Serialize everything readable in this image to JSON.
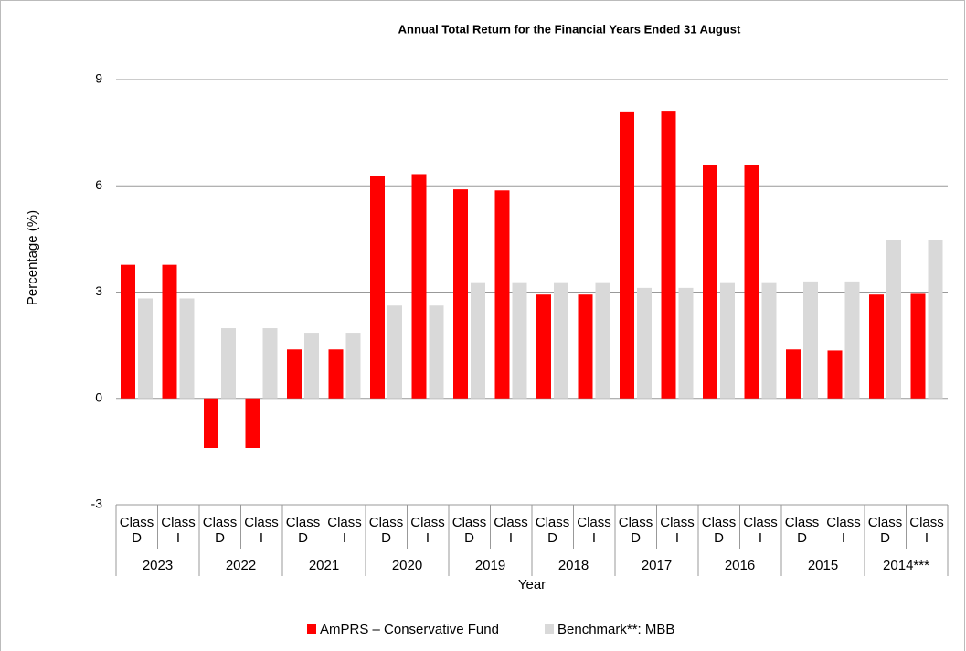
{
  "chart_data": {
    "type": "bar",
    "title": "Annual Total Return for the Financial Years Ended 31 August",
    "x_label": "Year",
    "y_label": "Percentage (%)",
    "categories": [
      "Class D",
      "Class I",
      "Class D",
      "Class I",
      "Class D",
      "Class I",
      "Class D",
      "Class I",
      "Class D",
      "Class I",
      "Class D",
      "Class I",
      "Class D",
      "Class I",
      "Class D",
      "Class I",
      "Class D",
      "Class I",
      "Class D",
      "Class I"
    ],
    "groups": [
      "2023",
      "2022",
      "2021",
      "2020",
      "2019",
      "2018",
      "2017",
      "2016",
      "2015",
      "2014***"
    ],
    "series": [
      {
        "name": "AmPRS – Conservative Fund",
        "color": "#ff0000",
        "values": [
          3.77,
          3.77,
          -1.4,
          -1.4,
          1.38,
          1.38,
          6.28,
          6.33,
          5.9,
          5.87,
          2.93,
          2.93,
          8.1,
          8.12,
          6.6,
          6.6,
          1.38,
          1.35,
          2.93,
          2.95
        ]
      },
      {
        "name": "Benchmark**: MBB",
        "color": "#d9d9d9",
        "values": [
          2.82,
          2.82,
          1.98,
          1.98,
          1.85,
          1.85,
          2.62,
          2.62,
          3.28,
          3.28,
          3.28,
          3.28,
          3.12,
          3.12,
          3.28,
          3.28,
          3.3,
          3.3,
          4.48,
          4.48
        ]
      }
    ],
    "ylim": [
      -3,
      9
    ],
    "yticks": [
      -3,
      0,
      3,
      6,
      9
    ],
    "grid": true,
    "legend": "bottom"
  }
}
